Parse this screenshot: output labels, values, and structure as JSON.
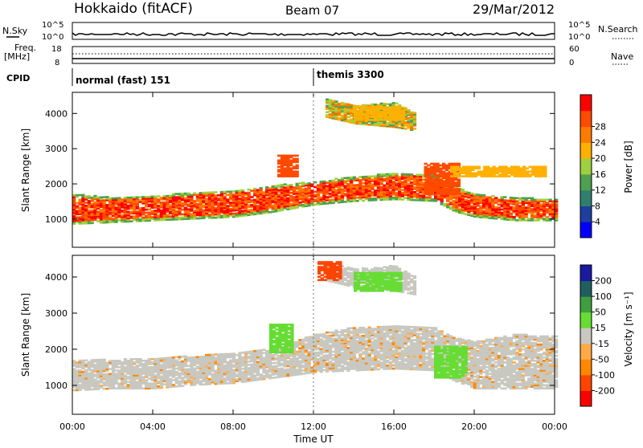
{
  "header": {
    "station": "Hokkaido (fitACF)",
    "beam": "Beam 07",
    "date": "29/Mar/2012"
  },
  "nsky_label": "N.Sky",
  "nsearch_label": "N.Search",
  "freq_label_1": "Freq.",
  "freq_label_2": "[MHz]",
  "nave_label": "Nave",
  "cpid_label": "CPID",
  "nsky_ticks": [
    "10^5",
    "10^0"
  ],
  "nsearch_ticks": [
    "10^5",
    "10^0"
  ],
  "freq_ticks": [
    "18",
    "8"
  ],
  "nave_ticks": [
    "60",
    "0"
  ],
  "cpid_modes": [
    {
      "label": "normal (fast) 151",
      "start_hr": 0,
      "end_hr": 12
    },
    {
      "label": "themis 3300",
      "start_hr": 12,
      "end_hr": 24
    }
  ],
  "colors": {
    "power": [
      "#0000ff",
      "#1f3f9f",
      "#2f7f6f",
      "#4fa04f",
      "#9fd03f",
      "#ffb000",
      "#ff7a00",
      "#ff4a00",
      "#ff0000"
    ],
    "velocity": [
      "#1a1aa0",
      "#1f5f5f",
      "#3f9f3f",
      "#66dd33",
      "#c8c8c0",
      "#ffaa44",
      "#ff8800",
      "#ff4400",
      "#ff0000"
    ],
    "ground_scatter": "#c8c8c0"
  },
  "chart_data": [
    {
      "type": "heatmap",
      "name": "power-panel",
      "xlabel": "",
      "ylabel": "Slant Range [km]",
      "xlim": [
        0,
        24
      ],
      "ylim": [
        200,
        4600
      ],
      "y_ticks": [
        "1000",
        "2000",
        "3000",
        "4000"
      ],
      "colorbar": {
        "label": "Power [dB]",
        "ticks": [
          "4",
          "8",
          "12",
          "16",
          "20",
          "24",
          "28"
        ],
        "range": [
          0,
          32
        ]
      }
    },
    {
      "type": "heatmap",
      "name": "velocity-panel",
      "xlabel": "Time UT",
      "ylabel": "Slant Range [km]",
      "xlim": [
        0,
        24
      ],
      "ylim": [
        200,
        4600
      ],
      "x_ticks": [
        "00:00",
        "04:00",
        "08:00",
        "12:00",
        "16:00",
        "20:00",
        "00:00"
      ],
      "y_ticks": [
        "1000",
        "2000",
        "3000",
        "4000"
      ],
      "colorbar": {
        "label": "Velocity [m s⁻¹]",
        "ticks": [
          "200",
          "100",
          "50",
          "15",
          "-15",
          "-50",
          "-100",
          "-200"
        ]
      }
    }
  ],
  "echo_bands": {
    "main_power": [
      {
        "t": 0,
        "lo": 850,
        "hi": 1700
      },
      {
        "t": 2,
        "lo": 900,
        "hi": 1600
      },
      {
        "t": 4,
        "lo": 950,
        "hi": 1650
      },
      {
        "t": 6,
        "lo": 1000,
        "hi": 1750
      },
      {
        "t": 8,
        "lo": 1050,
        "hi": 1800
      },
      {
        "t": 10,
        "lo": 1200,
        "hi": 1950
      },
      {
        "t": 12,
        "lo": 1400,
        "hi": 2050
      },
      {
        "t": 14,
        "lo": 1500,
        "hi": 2200
      },
      {
        "t": 16,
        "lo": 1550,
        "hi": 2300
      },
      {
        "t": 18,
        "lo": 1500,
        "hi": 2250
      },
      {
        "t": 19,
        "lo": 1200,
        "hi": 1900
      },
      {
        "t": 20,
        "lo": 1050,
        "hi": 1700
      },
      {
        "t": 22,
        "lo": 950,
        "hi": 1600
      },
      {
        "t": 24,
        "lo": 950,
        "hi": 1550
      }
    ],
    "main_velocity": [
      {
        "t": 0,
        "lo": 850,
        "hi": 1700
      },
      {
        "t": 2,
        "lo": 900,
        "hi": 1700
      },
      {
        "t": 4,
        "lo": 900,
        "hi": 1750
      },
      {
        "t": 6,
        "lo": 1000,
        "hi": 1800
      },
      {
        "t": 8,
        "lo": 1050,
        "hi": 1900
      },
      {
        "t": 10,
        "lo": 1200,
        "hi": 2000
      },
      {
        "t": 12,
        "lo": 1350,
        "hi": 2400
      },
      {
        "t": 14,
        "lo": 1400,
        "hi": 2600
      },
      {
        "t": 16,
        "lo": 1450,
        "hi": 2650
      },
      {
        "t": 18,
        "lo": 1400,
        "hi": 2600
      },
      {
        "t": 19,
        "lo": 1100,
        "hi": 2300
      },
      {
        "t": 20,
        "lo": 900,
        "hi": 2200
      },
      {
        "t": 22,
        "lo": 900,
        "hi": 2400
      },
      {
        "t": 24,
        "lo": 900,
        "hi": 2350
      }
    ],
    "upper_echo": [
      {
        "t": 12.5,
        "lo": 3900,
        "hi": 4400
      },
      {
        "t": 14,
        "lo": 3700,
        "hi": 4200
      },
      {
        "t": 16,
        "lo": 3600,
        "hi": 4300
      },
      {
        "t": 17,
        "lo": 3500,
        "hi": 4000
      }
    ]
  },
  "patches": [
    {
      "panel": 0,
      "t0": 10.2,
      "t1": 11.2,
      "r0": 2200,
      "r1": 2800,
      "color_index": 7
    },
    {
      "panel": 0,
      "t0": 17.5,
      "t1": 19.2,
      "r0": 1700,
      "r1": 2600,
      "color_index": 7
    },
    {
      "panel": 0,
      "t0": 18.8,
      "t1": 23.5,
      "r0": 2200,
      "r1": 2500,
      "color_index": 5
    },
    {
      "panel": 0,
      "t0": 14,
      "t1": 16.5,
      "r0": 3800,
      "r1": 4200,
      "color_index": 5
    },
    {
      "panel": 1,
      "t0": 9.8,
      "t1": 11,
      "r0": 1900,
      "r1": 2700,
      "color_index": 3
    },
    {
      "panel": 1,
      "t0": 18,
      "t1": 19.5,
      "r0": 1200,
      "r1": 2100,
      "color_index": 3
    },
    {
      "panel": 1,
      "t0": 14,
      "t1": 16.3,
      "r0": 3600,
      "r1": 4100,
      "color_index": 3
    },
    {
      "panel": 1,
      "t0": 12.2,
      "t1": 13.4,
      "r0": 3900,
      "r1": 4400,
      "color_index": 7
    }
  ]
}
